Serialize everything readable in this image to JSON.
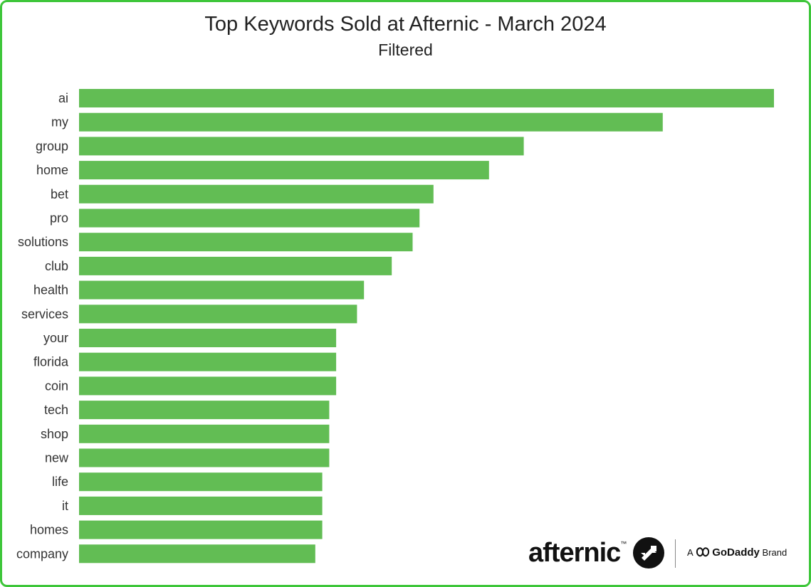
{
  "chart_data": {
    "type": "bar",
    "orientation": "horizontal",
    "title": "Top Keywords Sold at Afternic - March 2024",
    "subtitle": "Filtered",
    "categories": [
      "ai",
      "my",
      "group",
      "home",
      "bet",
      "pro",
      "solutions",
      "club",
      "health",
      "services",
      "your",
      "florida",
      "coin",
      "tech",
      "shop",
      "new",
      "life",
      "it",
      "homes",
      "company"
    ],
    "values": [
      100,
      84,
      64,
      59,
      51,
      49,
      48,
      45,
      41,
      40,
      37,
      37,
      37,
      36,
      36,
      36,
      35,
      35,
      35,
      34
    ],
    "xlim": [
      0,
      100
    ],
    "grid": false,
    "legend": "none",
    "bar_color": "#62bd54"
  },
  "branding": {
    "logo_text": "afternic",
    "logo_tm": "™",
    "brand_prefix": "A",
    "brand_name": "GoDaddy",
    "brand_suffix": "Brand"
  },
  "colors": {
    "frame": "#3ec63a",
    "bar": "#62bd54"
  }
}
